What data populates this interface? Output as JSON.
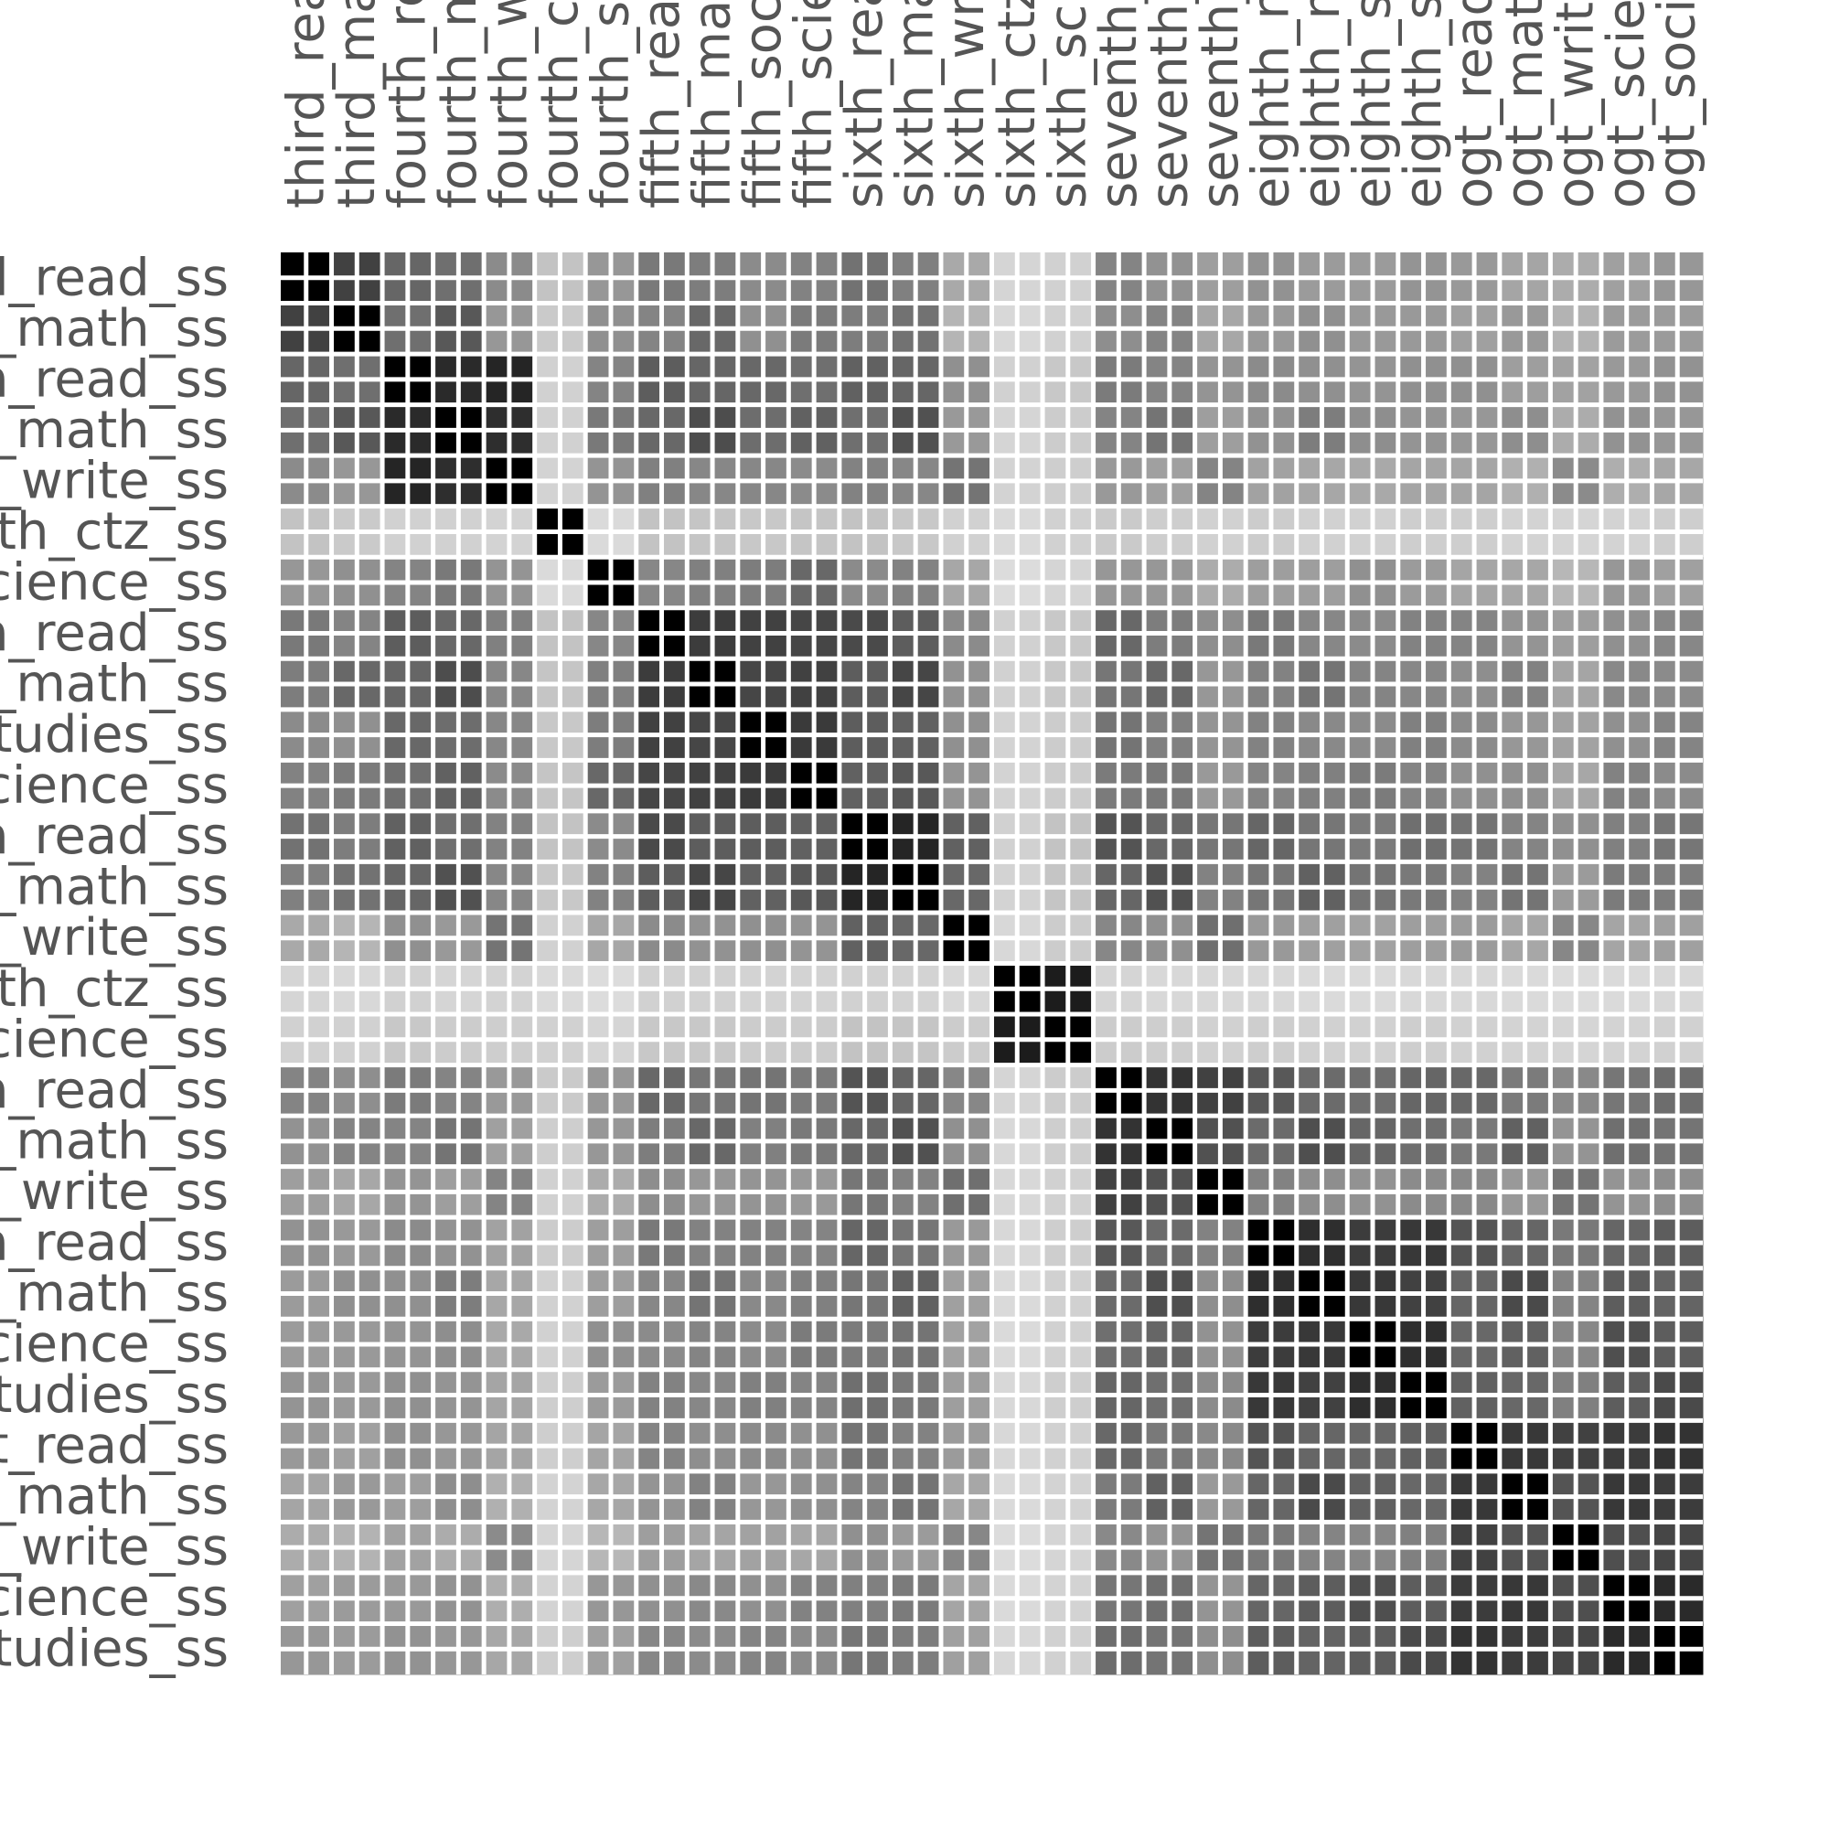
{
  "chart_data": {
    "type": "heatmap",
    "title": "",
    "xlabel": "",
    "ylabel": "",
    "grid": true,
    "colormap": "greys",
    "vlim": [
      0,
      1
    ],
    "row_labels": [
      "third_read_ss",
      "third_math_ss",
      "fourth_read_ss",
      "fourth_math_ss",
      "fourth_write_ss",
      "fourth_ctz_ss",
      "fourth_science_ss",
      "fifth_read_ss",
      "fifth_math_ss",
      "fifth_social_studies_ss",
      "fifth_science_ss",
      "sixth_read_ss",
      "sixth_math_ss",
      "sixth_write_ss",
      "sixth_ctz_ss",
      "sixth_science_ss",
      "seventh_read_ss",
      "seventh_math_ss",
      "seventh_write_ss",
      "eighth_read_ss",
      "eighth_math_ss",
      "eighth_science_ss",
      "eighth_social_studies_ss",
      "ogt_read_ss",
      "ogt_math_ss",
      "ogt_write_ss",
      "ogt_science_ss",
      "ogt_social_studies_ss"
    ],
    "column_labels": [
      "third_read_ss",
      "third_math_ss",
      "fourth_read_ss",
      "fourth_math_ss",
      "fourth_write_ss",
      "fourth_ctz_ss",
      "fourth_science_ss",
      "fifth_read_ss",
      "fifth_math_ss",
      "fifth_social_studies_ss",
      "fifth_science_ss",
      "sixth_read_ss",
      "sixth_math_ss",
      "sixth_write_ss",
      "sixth_ctz_ss",
      "sixth_science_ss",
      "seventh_read_ss",
      "seventh_math_ss",
      "seventh_write_ss",
      "eighth_read_ss",
      "eighth_math_ss",
      "eighth_science_ss",
      "eighth_social_studies_ss",
      "ogt_read_ss",
      "ogt_math_ss",
      "ogt_write_ss",
      "ogt_science_ss",
      "ogt_social_studies_ss"
    ],
    "rows_visible_text": [
      "read_ss",
      "math_ss",
      "read_ss",
      "math_ss",
      "write_ss",
      "n_ctz_ss",
      "ence_ss",
      "read_ss",
      "math_ss",
      "dies_ss",
      "ence_ss",
      "read_ss",
      "math_ss",
      "write_ss",
      "n_ctz_ss",
      "ence_ss",
      "read_ss",
      "math_ss",
      "write_ss",
      "read_ss",
      "math_ss",
      "ence_ss",
      "dies_ss",
      "read_ss",
      "math_ss",
      "write_ss",
      "ence_ss",
      "dies_ss"
    ],
    "columns_visible_text": [
      "third_r",
      "third_m",
      "fourth_r",
      "fourth_m",
      "fourth_w",
      "fourth_c",
      "fourth_s",
      "fifth_re",
      "fifth_m",
      "fifth_so",
      "fifth_sc",
      "sixth_r",
      "sixth_m",
      "sixth_w",
      "sixth_c",
      "sixth_s",
      "sevent",
      "sevent",
      "sevent",
      "eighth",
      "eighth",
      "eighth",
      "eighth",
      "ogt_re",
      "ogt_ma",
      "ogt_wr",
      "ogt_sc",
      "ogt_so"
    ],
    "values": [
      [
        1.0,
        0.72,
        0.56,
        0.52,
        0.4,
        0.16,
        0.35,
        0.48,
        0.46,
        0.4,
        0.44,
        0.51,
        0.45,
        0.27,
        0.08,
        0.1,
        0.43,
        0.37,
        0.32,
        0.37,
        0.33,
        0.33,
        0.36,
        0.34,
        0.29,
        0.26,
        0.31,
        0.35
      ],
      [
        0.72,
        1.0,
        0.52,
        0.62,
        0.35,
        0.13,
        0.38,
        0.43,
        0.55,
        0.38,
        0.47,
        0.46,
        0.51,
        0.22,
        0.07,
        0.1,
        0.39,
        0.43,
        0.28,
        0.34,
        0.38,
        0.34,
        0.34,
        0.31,
        0.34,
        0.23,
        0.33,
        0.33
      ],
      [
        0.56,
        0.52,
        1.0,
        0.82,
        0.84,
        0.1,
        0.43,
        0.6,
        0.56,
        0.55,
        0.52,
        0.58,
        0.56,
        0.38,
        0.1,
        0.14,
        0.47,
        0.43,
        0.36,
        0.4,
        0.38,
        0.36,
        0.38,
        0.38,
        0.32,
        0.3,
        0.34,
        0.37
      ],
      [
        0.52,
        0.62,
        0.82,
        1.0,
        0.8,
        0.1,
        0.48,
        0.55,
        0.67,
        0.53,
        0.58,
        0.52,
        0.65,
        0.34,
        0.08,
        0.12,
        0.43,
        0.5,
        0.32,
        0.37,
        0.46,
        0.39,
        0.36,
        0.35,
        0.39,
        0.26,
        0.37,
        0.35
      ],
      [
        0.4,
        0.35,
        0.84,
        0.8,
        1.0,
        0.09,
        0.36,
        0.45,
        0.42,
        0.42,
        0.4,
        0.44,
        0.42,
        0.5,
        0.09,
        0.11,
        0.34,
        0.31,
        0.43,
        0.3,
        0.28,
        0.27,
        0.29,
        0.29,
        0.24,
        0.4,
        0.25,
        0.28
      ],
      [
        0.16,
        0.13,
        0.1,
        0.1,
        0.09,
        1.0,
        0.06,
        0.16,
        0.15,
        0.14,
        0.15,
        0.16,
        0.14,
        0.1,
        0.06,
        0.1,
        0.13,
        0.11,
        0.1,
        0.12,
        0.1,
        0.1,
        0.11,
        0.11,
        0.09,
        0.08,
        0.09,
        0.11
      ],
      [
        0.35,
        0.38,
        0.43,
        0.48,
        0.36,
        0.06,
        1.0,
        0.42,
        0.45,
        0.46,
        0.55,
        0.4,
        0.44,
        0.28,
        0.05,
        0.08,
        0.35,
        0.35,
        0.26,
        0.32,
        0.32,
        0.38,
        0.33,
        0.29,
        0.28,
        0.21,
        0.35,
        0.31
      ],
      [
        0.48,
        0.43,
        0.6,
        0.55,
        0.45,
        0.16,
        0.42,
        1.0,
        0.74,
        0.72,
        0.7,
        0.68,
        0.6,
        0.4,
        0.1,
        0.14,
        0.55,
        0.46,
        0.39,
        0.48,
        0.42,
        0.4,
        0.44,
        0.43,
        0.36,
        0.32,
        0.38,
        0.42
      ],
      [
        0.46,
        0.55,
        0.56,
        0.67,
        0.42,
        0.15,
        0.45,
        0.74,
        1.0,
        0.7,
        0.72,
        0.6,
        0.7,
        0.37,
        0.1,
        0.14,
        0.49,
        0.55,
        0.35,
        0.44,
        0.5,
        0.43,
        0.42,
        0.39,
        0.44,
        0.29,
        0.41,
        0.4
      ],
      [
        0.4,
        0.38,
        0.55,
        0.53,
        0.42,
        0.14,
        0.46,
        0.72,
        0.7,
        1.0,
        0.75,
        0.6,
        0.58,
        0.38,
        0.09,
        0.12,
        0.5,
        0.45,
        0.36,
        0.44,
        0.41,
        0.4,
        0.45,
        0.4,
        0.35,
        0.3,
        0.38,
        0.43
      ],
      [
        0.44,
        0.47,
        0.52,
        0.58,
        0.4,
        0.15,
        0.55,
        0.7,
        0.72,
        0.75,
        1.0,
        0.58,
        0.62,
        0.36,
        0.09,
        0.12,
        0.47,
        0.48,
        0.34,
        0.43,
        0.45,
        0.47,
        0.43,
        0.38,
        0.38,
        0.28,
        0.44,
        0.4
      ],
      [
        0.51,
        0.46,
        0.58,
        0.52,
        0.44,
        0.16,
        0.4,
        0.68,
        0.6,
        0.6,
        0.58,
        1.0,
        0.84,
        0.58,
        0.1,
        0.16,
        0.64,
        0.55,
        0.49,
        0.56,
        0.49,
        0.47,
        0.52,
        0.5,
        0.43,
        0.38,
        0.45,
        0.49
      ],
      [
        0.45,
        0.51,
        0.56,
        0.65,
        0.42,
        0.14,
        0.44,
        0.6,
        0.7,
        0.58,
        0.62,
        0.84,
        1.0,
        0.55,
        0.09,
        0.15,
        0.56,
        0.65,
        0.44,
        0.49,
        0.58,
        0.5,
        0.48,
        0.44,
        0.5,
        0.33,
        0.47,
        0.46
      ],
      [
        0.27,
        0.22,
        0.38,
        0.34,
        0.5,
        0.1,
        0.28,
        0.4,
        0.37,
        0.38,
        0.36,
        0.58,
        0.55,
        1.0,
        0.07,
        0.12,
        0.42,
        0.38,
        0.52,
        0.34,
        0.31,
        0.3,
        0.32,
        0.33,
        0.28,
        0.42,
        0.29,
        0.31
      ],
      [
        0.08,
        0.07,
        0.1,
        0.08,
        0.09,
        0.06,
        0.05,
        0.1,
        0.1,
        0.09,
        0.09,
        0.1,
        0.09,
        0.07,
        1.0,
        0.88,
        0.08,
        0.07,
        0.07,
        0.07,
        0.06,
        0.06,
        0.07,
        0.07,
        0.06,
        0.05,
        0.06,
        0.07
      ],
      [
        0.1,
        0.1,
        0.14,
        0.12,
        0.11,
        0.1,
        0.08,
        0.14,
        0.14,
        0.12,
        0.12,
        0.16,
        0.15,
        0.12,
        0.88,
        1.0,
        0.12,
        0.11,
        0.1,
        0.11,
        0.1,
        0.1,
        0.11,
        0.1,
        0.09,
        0.08,
        0.09,
        0.1
      ],
      [
        0.43,
        0.39,
        0.47,
        0.43,
        0.34,
        0.13,
        0.35,
        0.55,
        0.49,
        0.5,
        0.47,
        0.64,
        0.56,
        0.42,
        0.08,
        0.12,
        1.0,
        0.78,
        0.72,
        0.62,
        0.54,
        0.52,
        0.56,
        0.55,
        0.47,
        0.41,
        0.49,
        0.53
      ],
      [
        0.37,
        0.43,
        0.43,
        0.5,
        0.31,
        0.11,
        0.35,
        0.46,
        0.55,
        0.45,
        0.48,
        0.55,
        0.65,
        0.38,
        0.07,
        0.11,
        0.78,
        1.0,
        0.65,
        0.54,
        0.66,
        0.56,
        0.52,
        0.48,
        0.58,
        0.36,
        0.52,
        0.5
      ],
      [
        0.32,
        0.28,
        0.36,
        0.32,
        0.43,
        0.1,
        0.26,
        0.39,
        0.35,
        0.36,
        0.34,
        0.49,
        0.44,
        0.52,
        0.07,
        0.1,
        0.72,
        0.65,
        1.0,
        0.44,
        0.39,
        0.37,
        0.4,
        0.41,
        0.34,
        0.5,
        0.36,
        0.39
      ],
      [
        0.37,
        0.34,
        0.4,
        0.37,
        0.3,
        0.12,
        0.32,
        0.48,
        0.44,
        0.44,
        0.43,
        0.56,
        0.49,
        0.34,
        0.07,
        0.11,
        0.62,
        0.54,
        0.44,
        1.0,
        0.8,
        0.74,
        0.76,
        0.64,
        0.56,
        0.48,
        0.56,
        0.6
      ],
      [
        0.33,
        0.38,
        0.38,
        0.46,
        0.28,
        0.1,
        0.32,
        0.42,
        0.5,
        0.41,
        0.45,
        0.49,
        0.58,
        0.31,
        0.06,
        0.1,
        0.54,
        0.66,
        0.39,
        0.8,
        1.0,
        0.76,
        0.72,
        0.56,
        0.68,
        0.43,
        0.6,
        0.57
      ],
      [
        0.33,
        0.34,
        0.36,
        0.39,
        0.27,
        0.1,
        0.38,
        0.4,
        0.43,
        0.4,
        0.47,
        0.47,
        0.5,
        0.3,
        0.06,
        0.1,
        0.52,
        0.56,
        0.37,
        0.74,
        0.76,
        1.0,
        0.8,
        0.55,
        0.58,
        0.42,
        0.66,
        0.6
      ],
      [
        0.36,
        0.34,
        0.38,
        0.36,
        0.29,
        0.11,
        0.33,
        0.44,
        0.42,
        0.45,
        0.43,
        0.52,
        0.48,
        0.32,
        0.07,
        0.11,
        0.56,
        0.52,
        0.4,
        0.76,
        0.72,
        0.8,
        1.0,
        0.58,
        0.55,
        0.45,
        0.6,
        0.68
      ],
      [
        0.34,
        0.31,
        0.38,
        0.35,
        0.29,
        0.11,
        0.29,
        0.43,
        0.39,
        0.4,
        0.38,
        0.5,
        0.44,
        0.33,
        0.07,
        0.1,
        0.55,
        0.48,
        0.41,
        0.64,
        0.56,
        0.55,
        0.58,
        1.0,
        0.76,
        0.72,
        0.74,
        0.78
      ],
      [
        0.29,
        0.34,
        0.32,
        0.39,
        0.24,
        0.09,
        0.28,
        0.36,
        0.44,
        0.35,
        0.38,
        0.43,
        0.5,
        0.28,
        0.06,
        0.09,
        0.47,
        0.58,
        0.34,
        0.56,
        0.68,
        0.58,
        0.55,
        0.76,
        1.0,
        0.64,
        0.76,
        0.74
      ],
      [
        0.26,
        0.23,
        0.3,
        0.26,
        0.4,
        0.08,
        0.21,
        0.32,
        0.29,
        0.3,
        0.28,
        0.38,
        0.33,
        0.42,
        0.05,
        0.08,
        0.41,
        0.36,
        0.5,
        0.48,
        0.43,
        0.42,
        0.45,
        0.72,
        0.64,
        1.0,
        0.66,
        0.7
      ],
      [
        0.31,
        0.33,
        0.34,
        0.37,
        0.25,
        0.09,
        0.35,
        0.38,
        0.41,
        0.38,
        0.44,
        0.45,
        0.47,
        0.29,
        0.06,
        0.09,
        0.49,
        0.52,
        0.36,
        0.56,
        0.6,
        0.66,
        0.6,
        0.74,
        0.76,
        0.66,
        1.0,
        0.82
      ],
      [
        0.35,
        0.33,
        0.37,
        0.35,
        0.28,
        0.11,
        0.31,
        0.42,
        0.4,
        0.43,
        0.4,
        0.49,
        0.46,
        0.31,
        0.07,
        0.1,
        0.53,
        0.5,
        0.39,
        0.6,
        0.57,
        0.6,
        0.68,
        0.78,
        0.74,
        0.7,
        0.82,
        1.0
      ]
    ]
  }
}
